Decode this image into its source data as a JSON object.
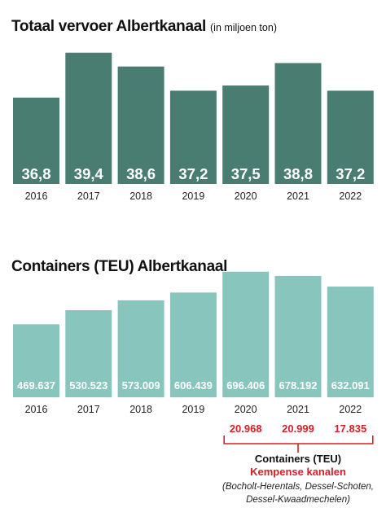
{
  "colors": {
    "dark_bar": "#4a7d71",
    "light_bar": "#88c6bd",
    "accent_red": "#d42027"
  },
  "chart_data": [
    {
      "type": "bar",
      "title": "Totaal vervoer Albertkanaal",
      "subtitle": "(in miljoen ton)",
      "categories": [
        "2016",
        "2017",
        "2018",
        "2019",
        "2020",
        "2021",
        "2022"
      ],
      "values": [
        36.8,
        39.4,
        38.6,
        37.2,
        37.5,
        38.8,
        37.2
      ],
      "value_labels": [
        "36,8",
        "39,4",
        "38,6",
        "37,2",
        "37,5",
        "38,8",
        "37,2"
      ],
      "ylim": [
        31.8,
        40
      ],
      "xlabel": "",
      "ylabel": "",
      "grid": false
    },
    {
      "type": "bar",
      "title": "Containers (TEU) Albertkanaal",
      "categories": [
        "2016",
        "2017",
        "2018",
        "2019",
        "2020",
        "2021",
        "2022"
      ],
      "values": [
        469637,
        530523,
        573009,
        606439,
        696406,
        678192,
        632091
      ],
      "value_labels": [
        "469.637",
        "530.523",
        "573.009",
        "606.439",
        "696.406",
        "678.192",
        "632.091"
      ],
      "ylim": [
        155000,
        720000
      ],
      "xlabel": "",
      "ylabel": "",
      "grid": false,
      "annotation": {
        "years": [
          "2020",
          "2021",
          "2022"
        ],
        "values": [
          20968,
          20999,
          17835
        ],
        "value_labels": [
          "20.968",
          "20.999",
          "17.835"
        ],
        "heading": "Containers (TEU)",
        "subheading": "Kempense kanalen",
        "note_line1": "(Bocholt-Herentals, Dessel-Schoten,",
        "note_line2": "Dessel-Kwaadmechelen)"
      }
    }
  ]
}
